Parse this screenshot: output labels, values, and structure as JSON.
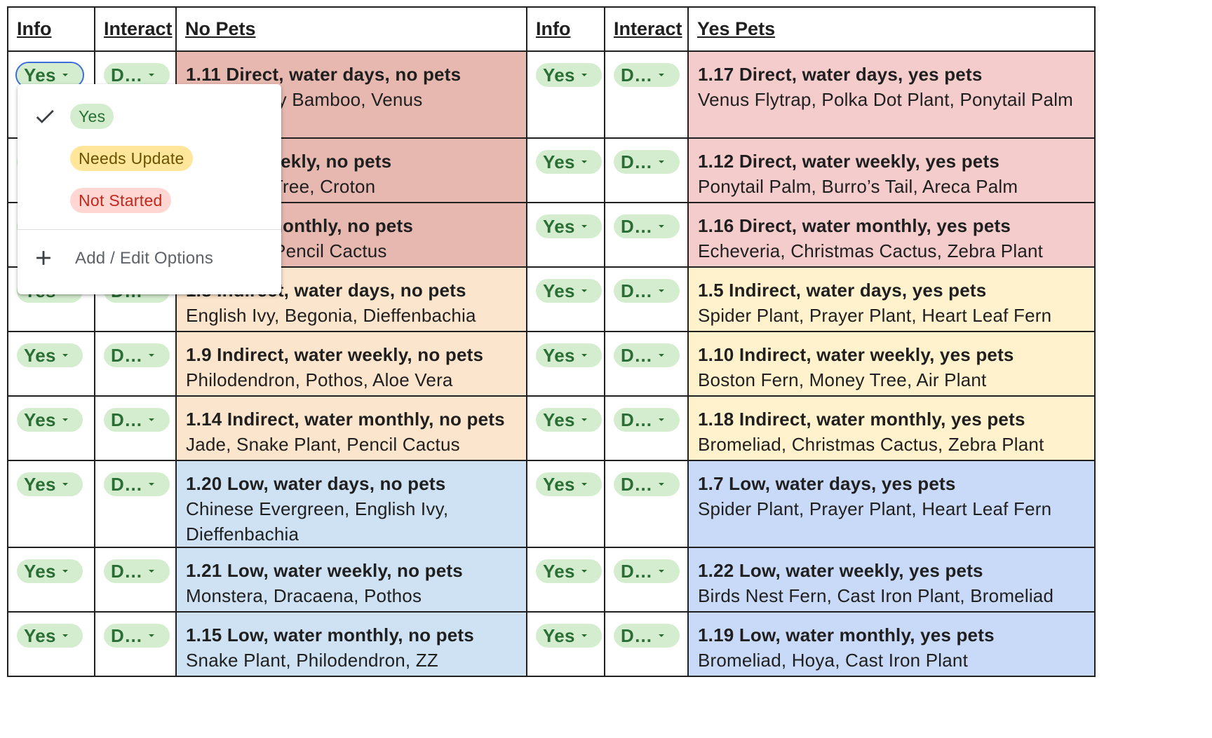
{
  "headers": {
    "info": "Info",
    "interact": "Interact",
    "no_pets": "No Pets",
    "yes_pets": "Yes Pets"
  },
  "chip_info": "Yes",
  "chip_interact": "D…",
  "rows": [
    {
      "left": {
        "title": "1.11 Direct, water days, no pets",
        "plants": "Palm, Lucky Bamboo, Venus",
        "color": "#e6b8b0"
      },
      "right": {
        "title": "1.17 Direct, water days, yes pets",
        "plants": "Venus Flytrap, Polka Dot Plant, Ponytail Palm",
        "color": "#f4cccc"
      }
    },
    {
      "left": {
        "title": "t, water weekly, no pets",
        "plants": "e, Rubber Tree, Croton",
        "color": "#e6b8b0"
      },
      "right": {
        "title": "1.12 Direct, water weekly, yes pets",
        "plants": "Ponytail Palm, Burro’s Tail, Areca Palm",
        "color": "#f4cccc"
      }
    },
    {
      "left": {
        "title": "ct, water monthly, no pets",
        "plants": "ake Plant, Pencil Cactus",
        "color": "#e6b8b0"
      },
      "right": {
        "title": "1.16 Direct, water monthly, yes pets",
        "plants": "Echeveria, Christmas Cactus, Zebra Plant",
        "color": "#f4cccc"
      }
    },
    {
      "left": {
        "title": "1.8 Indirect, water days, no pets",
        "plants": " English Ivy, Begonia, Dieffenbachia",
        "color": "#fce5cd"
      },
      "right": {
        "title": "1.5 Indirect, water days, yes pets",
        "plants": "Spider Plant, Prayer Plant, Heart Leaf Fern",
        "color": "#fff2cc"
      }
    },
    {
      "left": {
        "title": "1.9 Indirect, water weekly, no pets",
        "plants": "Philodendron, Pothos, Aloe Vera",
        "color": "#fce5cd"
      },
      "right": {
        "title": "1.10 Indirect, water weekly, yes pets",
        "plants": "Boston Fern, Money Tree, Air Plant",
        "color": "#fff2cc"
      }
    },
    {
      "left": {
        "title": "1.14 Indirect, water monthly, no pets",
        "plants": "Jade, Snake Plant, Pencil Cactus",
        "color": "#fce5cd"
      },
      "right": {
        "title": "1.18 Indirect, water monthly, yes pets",
        "plants": "Bromeliad, Christmas Cactus, Zebra Plant",
        "color": "#fff2cc"
      }
    },
    {
      "left": {
        "title": "1.20 Low, water days, no pets",
        "plants": "Chinese Evergreen, English Ivy, Dieffenbachia",
        "color": "#cfe2f3"
      },
      "right": {
        "title": "1.7 Low, water days, yes pets",
        "plants": "Spider Plant, Prayer Plant, Heart Leaf Fern",
        "color": "#c9daf8"
      }
    },
    {
      "left": {
        "title": "1.21 Low, water weekly, no pets",
        "plants": "Monstera, Dracaena, Pothos",
        "color": "#cfe2f3"
      },
      "right": {
        "title": "1.22 Low, water weekly, yes pets",
        "plants": "Birds Nest Fern, Cast Iron Plant, Bromeliad",
        "color": "#c9daf8"
      }
    },
    {
      "left": {
        "title": "1.15 Low, water monthly, no pets",
        "plants": "Snake Plant, Philodendron, ZZ",
        "color": "#cfe2f3"
      },
      "right": {
        "title": "1.19 Low, water monthly, yes pets",
        "plants": "Bromeliad, Hoya, Cast Iron Plant",
        "color": "#c9daf8"
      }
    }
  ],
  "dropdown": {
    "options": [
      {
        "label": "Yes",
        "status": "selected",
        "color": "#d4edcf"
      },
      {
        "label": "Needs Update",
        "color": "#ffe69a"
      },
      {
        "label": "Not Started",
        "color": "#ffd6d2"
      }
    ],
    "check_icon": "check-icon",
    "add_icon": "plus-icon",
    "add_label": "Add / Edit Options"
  }
}
